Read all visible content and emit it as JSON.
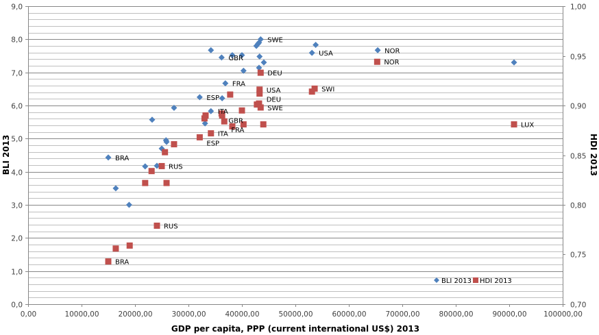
{
  "chart_data": {
    "type": "scatter",
    "title": "",
    "xlabel": "GDP per capita, PPP (current international US$) 2013",
    "ylabel": "BLI 2013",
    "y2label": "HDI 2013",
    "xlim": [
      0,
      100000
    ],
    "ylim": [
      0,
      9
    ],
    "y2lim": [
      0.7,
      1.0
    ],
    "x_ticks": [
      0,
      10000,
      20000,
      30000,
      40000,
      50000,
      60000,
      70000,
      80000,
      90000,
      100000
    ],
    "x_tick_labels": [
      "0,00",
      "10000,00",
      "20000,00",
      "30000,00",
      "40000,00",
      "50000,00",
      "60000,00",
      "70000,00",
      "80000,00",
      "90000,00",
      "100000,00"
    ],
    "y_ticks": [
      0,
      1,
      2,
      3,
      4,
      5,
      6,
      7,
      8,
      9
    ],
    "y_tick_labels": [
      "0,0",
      "1,0",
      "2,0",
      "3,0",
      "4,0",
      "5,0",
      "6,0",
      "7,0",
      "8,0",
      "9,0"
    ],
    "y2_ticks": [
      0.7,
      0.75,
      0.8,
      0.85,
      0.9,
      0.95,
      1.0
    ],
    "y2_tick_labels": [
      "0,70",
      "0,75",
      "0,80",
      "0,85",
      "0,90",
      "0,95",
      "1,00"
    ],
    "grid": true,
    "minor_grid_step": 0.2,
    "legend": {
      "position": "bottom-right",
      "entries": [
        "BLI 2013",
        "HDI 2013"
      ]
    },
    "series": [
      {
        "name": "BLI 2013",
        "axis": "left",
        "marker": "diamond",
        "color": "#4f81bd",
        "points": [
          {
            "x": 43500,
            "y": 8.0,
            "label": "SWE"
          },
          {
            "x": 43200,
            "y": 7.9,
            "label": ""
          },
          {
            "x": 43000,
            "y": 7.86,
            "label": ""
          },
          {
            "x": 42700,
            "y": 7.8,
            "label": ""
          },
          {
            "x": 34200,
            "y": 7.67,
            "label": ""
          },
          {
            "x": 38200,
            "y": 7.52,
            "label": ""
          },
          {
            "x": 40000,
            "y": 7.52,
            "label": ""
          },
          {
            "x": 43300,
            "y": 7.48,
            "label": ""
          },
          {
            "x": 36200,
            "y": 7.45,
            "label": "GBR"
          },
          {
            "x": 44100,
            "y": 7.3,
            "label": ""
          },
          {
            "x": 43200,
            "y": 7.14,
            "label": ""
          },
          {
            "x": 40300,
            "y": 7.05,
            "label": ""
          },
          {
            "x": 36900,
            "y": 6.67,
            "label": "FRA"
          },
          {
            "x": 32100,
            "y": 6.25,
            "label": "ESP"
          },
          {
            "x": 36300,
            "y": 6.22,
            "label": ""
          },
          {
            "x": 27300,
            "y": 5.93,
            "label": ""
          },
          {
            "x": 34200,
            "y": 5.83,
            "label": "ITA"
          },
          {
            "x": 23200,
            "y": 5.57,
            "label": ""
          },
          {
            "x": 33100,
            "y": 5.46,
            "label": ""
          },
          {
            "x": 25800,
            "y": 4.95,
            "label": ""
          },
          {
            "x": 25900,
            "y": 4.9,
            "label": ""
          },
          {
            "x": 25000,
            "y": 4.7,
            "label": ""
          },
          {
            "x": 15000,
            "y": 4.43,
            "label": "BRA"
          },
          {
            "x": 21900,
            "y": 4.16,
            "label": ""
          },
          {
            "x": 24100,
            "y": 4.18,
            "label": ""
          },
          {
            "x": 16400,
            "y": 3.5,
            "label": ""
          },
          {
            "x": 18900,
            "y": 3.0,
            "label": ""
          },
          {
            "x": 53800,
            "y": 7.83,
            "label": ""
          },
          {
            "x": 53100,
            "y": 7.59,
            "label": "USA"
          },
          {
            "x": 65400,
            "y": 7.67,
            "label": "NOR"
          },
          {
            "x": 90900,
            "y": 7.3,
            "label": ""
          }
        ]
      },
      {
        "name": "HDI 2013",
        "axis": "right",
        "marker": "square",
        "color": "#c0504d",
        "points": [
          {
            "x": 43500,
            "y": 0.933,
            "label": "DEU"
          },
          {
            "x": 43300,
            "y": 0.916,
            "label": "USA"
          },
          {
            "x": 43300,
            "y": 0.912,
            "label": "DEU"
          },
          {
            "x": 37800,
            "y": 0.911,
            "label": ""
          },
          {
            "x": 65300,
            "y": 0.944,
            "label": "NOR"
          },
          {
            "x": 53600,
            "y": 0.917,
            "label": "SWI"
          },
          {
            "x": 53100,
            "y": 0.914,
            "label": ""
          },
          {
            "x": 42800,
            "y": 0.901,
            "label": ""
          },
          {
            "x": 43200,
            "y": 0.902,
            "label": ""
          },
          {
            "x": 43500,
            "y": 0.898,
            "label": "SWE"
          },
          {
            "x": 40000,
            "y": 0.895,
            "label": ""
          },
          {
            "x": 33200,
            "y": 0.89,
            "label": ""
          },
          {
            "x": 33000,
            "y": 0.887,
            "label": ""
          },
          {
            "x": 36200,
            "y": 0.892,
            "label": "GBR"
          },
          {
            "x": 36300,
            "y": 0.89,
            "label": ""
          },
          {
            "x": 36700,
            "y": 0.884,
            "label": "FRA"
          },
          {
            "x": 38200,
            "y": 0.879,
            "label": ""
          },
          {
            "x": 40300,
            "y": 0.881,
            "label": ""
          },
          {
            "x": 44000,
            "y": 0.881,
            "label": ""
          },
          {
            "x": 34200,
            "y": 0.872,
            "label": "ITA"
          },
          {
            "x": 32100,
            "y": 0.868,
            "label": "ESP"
          },
          {
            "x": 27300,
            "y": 0.861,
            "label": ""
          },
          {
            "x": 25600,
            "y": 0.853,
            "label": ""
          },
          {
            "x": 90900,
            "y": 0.881,
            "label": "LUX"
          },
          {
            "x": 25000,
            "y": 0.839,
            "label": "RUS"
          },
          {
            "x": 23100,
            "y": 0.834,
            "label": ""
          },
          {
            "x": 21900,
            "y": 0.822,
            "label": ""
          },
          {
            "x": 25900,
            "y": 0.822,
            "label": ""
          },
          {
            "x": 24100,
            "y": 0.779,
            "label": "RUS"
          },
          {
            "x": 16400,
            "y": 0.756,
            "label": ""
          },
          {
            "x": 19000,
            "y": 0.759,
            "label": ""
          },
          {
            "x": 15000,
            "y": 0.743,
            "label": "BRA"
          }
        ]
      }
    ]
  }
}
